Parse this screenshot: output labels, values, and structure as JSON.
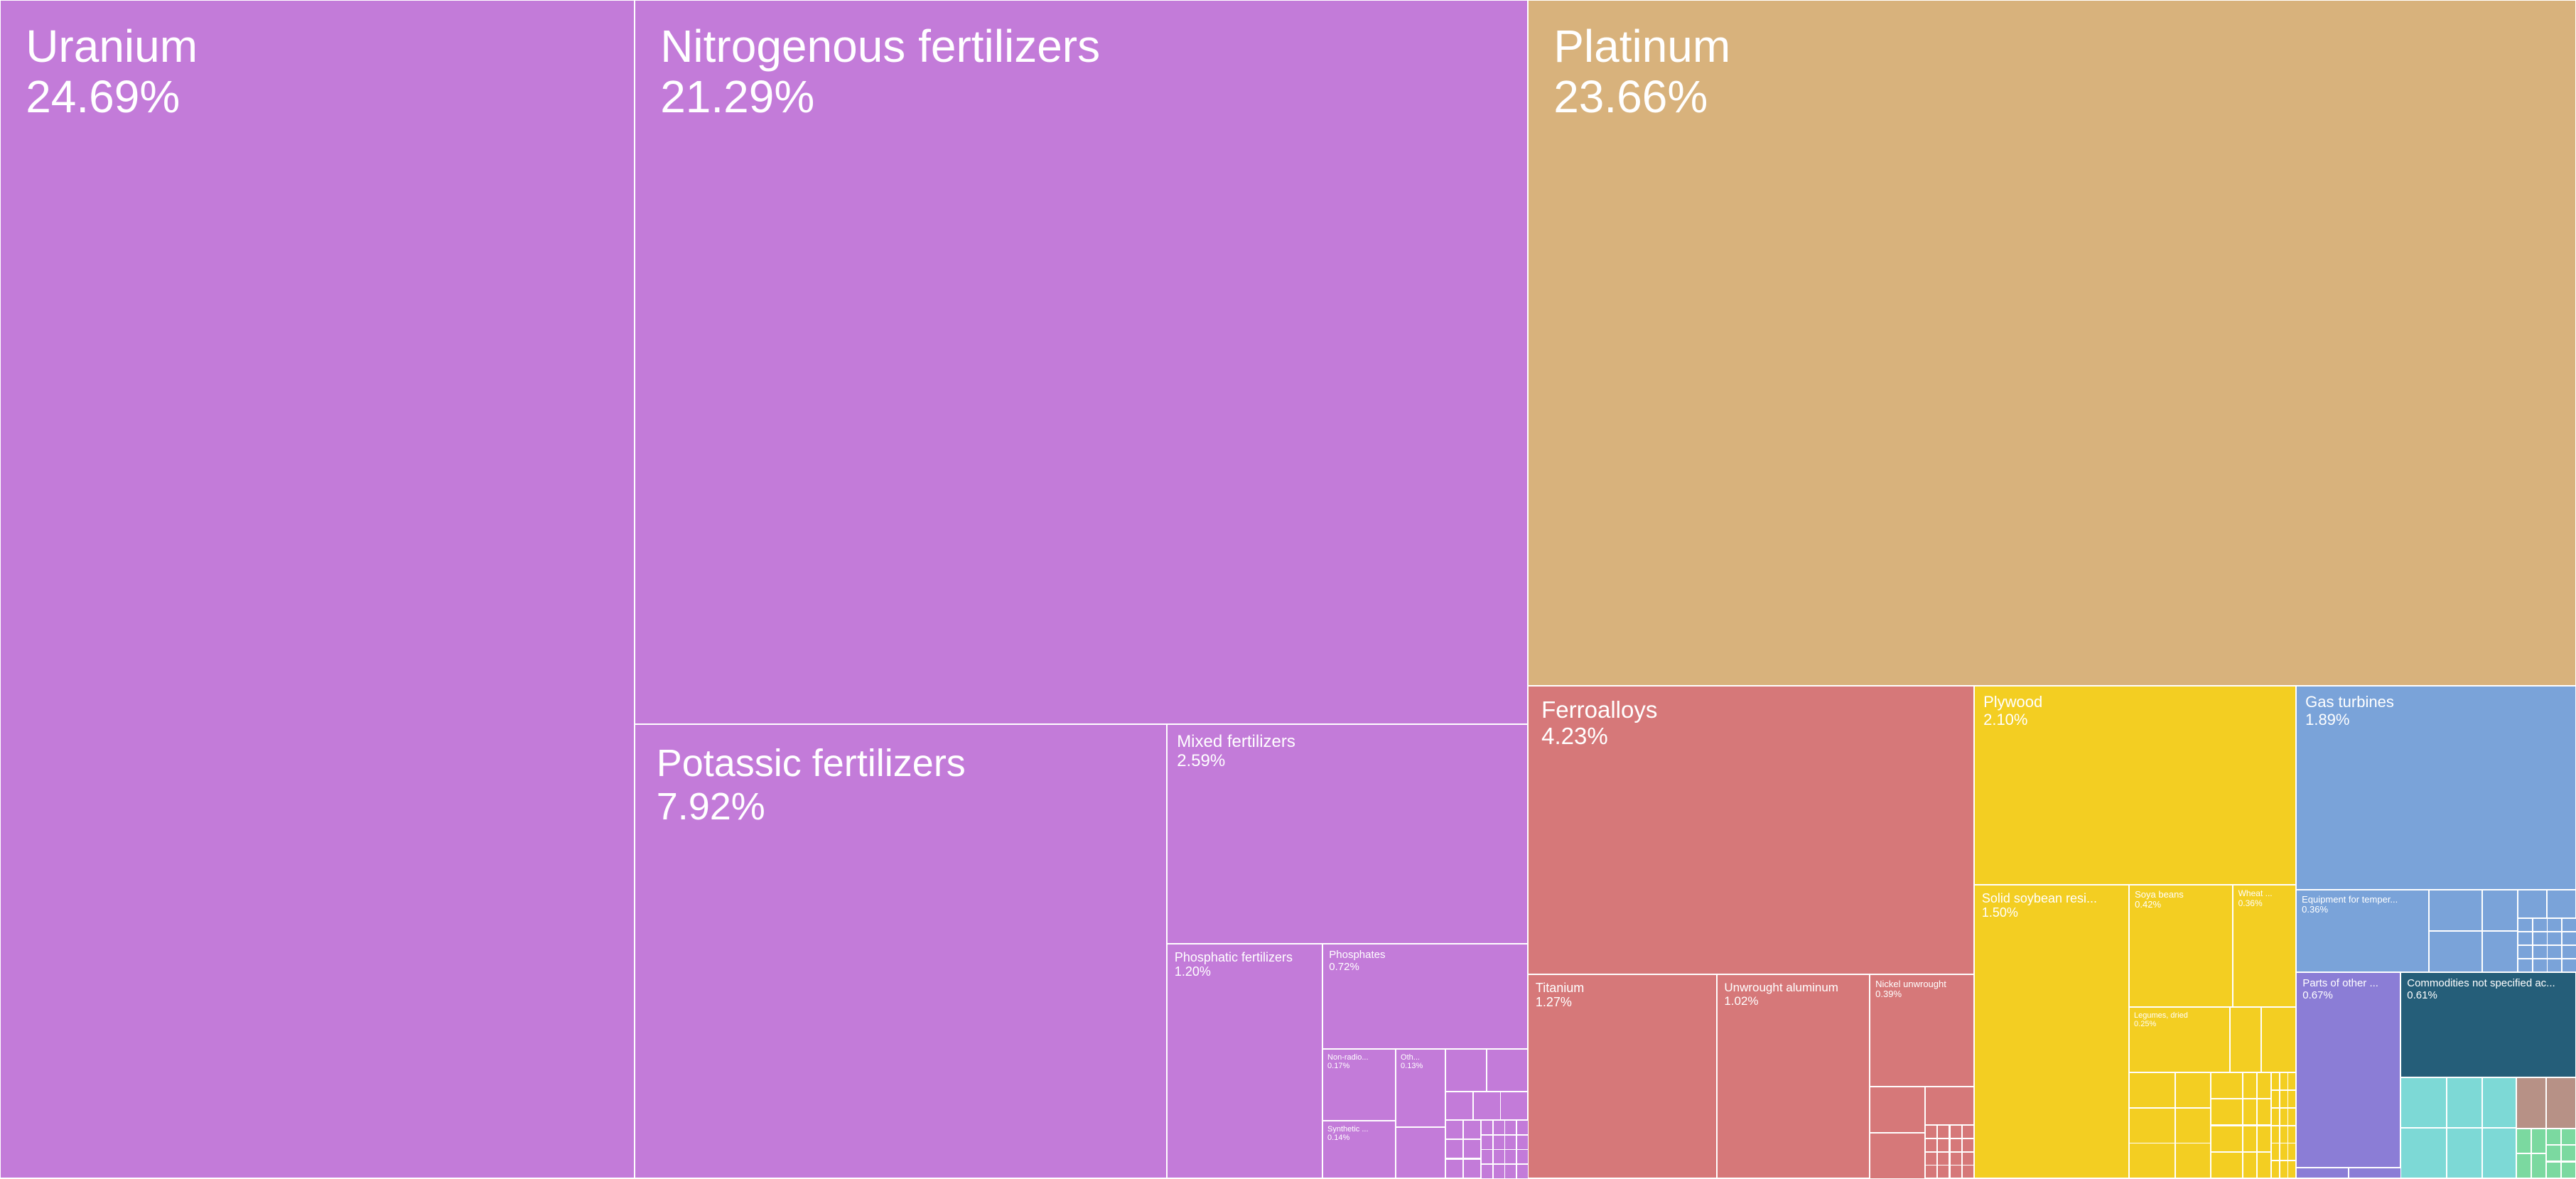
{
  "chart_data": {
    "type": "treemap",
    "colors": {
      "chemicals": "#c37bd9",
      "precious_metals": "#d8b27c",
      "metals": "#d67879",
      "vegetable_wood": "#f3ce22",
      "machinery": "#7aa3d9",
      "instruments": "#8b7dd6",
      "other": "#255e79",
      "teal": "#7dd9d6",
      "brown": "#b79186",
      "green": "#7bd9a0"
    },
    "tiles": [
      {
        "name": "Uranium",
        "value": "24.69%",
        "color": "chemicals",
        "fs": 64
      },
      {
        "name": "Nitrogenous fertilizers",
        "value": "21.29%",
        "color": "chemicals",
        "fs": 64
      },
      {
        "name": "Potassic fertilizers",
        "value": "7.92%",
        "color": "chemicals",
        "fs": 54
      },
      {
        "name": "Mixed fertilizers",
        "value": "2.59%",
        "color": "chemicals",
        "fs": 24
      },
      {
        "name": "Phosphatic fertilizers",
        "value": "1.20%",
        "color": "chemicals",
        "fs": 18
      },
      {
        "name": "Phosphates",
        "value": "0.72%",
        "color": "chemicals",
        "fs": 15
      },
      {
        "name": "Non-radio...",
        "value": "0.17%",
        "color": "chemicals",
        "fs": 11
      },
      {
        "name": "Oth...",
        "value": "0.13%",
        "color": "chemicals",
        "fs": 11
      },
      {
        "name": "Synthetic ...",
        "value": "0.14%",
        "color": "chemicals",
        "fs": 11
      },
      {
        "name": "Platinum",
        "value": "23.66%",
        "color": "precious_metals",
        "fs": 64
      },
      {
        "name": "Ferroalloys",
        "value": "4.23%",
        "color": "metals",
        "fs": 33
      },
      {
        "name": "Titanium",
        "value": "1.27%",
        "color": "metals",
        "fs": 18
      },
      {
        "name": "Unwrought aluminum",
        "value": "1.02%",
        "color": "metals",
        "fs": 17
      },
      {
        "name": "Nickel unwrought",
        "value": "0.39%",
        "color": "metals",
        "fs": 13
      },
      {
        "name": "Plywood",
        "value": "2.10%",
        "color": "vegetable_wood",
        "fs": 22
      },
      {
        "name": "Solid soybean resi...",
        "value": "1.50%",
        "color": "vegetable_wood",
        "fs": 18
      },
      {
        "name": "Soya beans",
        "value": "0.42%",
        "color": "vegetable_wood",
        "fs": 13
      },
      {
        "name": "Wheat ...",
        "value": "0.36%",
        "color": "vegetable_wood",
        "fs": 12
      },
      {
        "name": "Legumes, dried",
        "value": "0.25%",
        "color": "vegetable_wood",
        "fs": 11
      },
      {
        "name": "Gas turbines",
        "value": "1.89%",
        "color": "machinery",
        "fs": 22
      },
      {
        "name": "Equipment for temper...",
        "value": "0.36%",
        "color": "machinery",
        "fs": 13
      },
      {
        "name": "Parts of other ...",
        "value": "0.67%",
        "color": "instruments",
        "fs": 15
      },
      {
        "name": "Commodities not specified ac...",
        "value": "0.61%",
        "color": "other",
        "fs": 15
      }
    ]
  }
}
